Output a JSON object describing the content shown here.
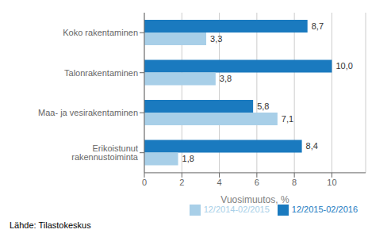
{
  "chart_data": {
    "type": "bar",
    "orientation": "horizontal",
    "categories": [
      "Erikoistunut rakennustoiminta",
      "Maa- ja vesirakentaminen",
      "Talonrakentaminen",
      "Koko rakentaminen"
    ],
    "series": [
      {
        "name": "12/2015-02/2016",
        "color": "#1a7abf",
        "values": [
          8.4,
          5.8,
          10.0,
          8.7
        ],
        "value_labels": [
          "8,4",
          "5,8",
          "10,0",
          "8,7"
        ]
      },
      {
        "name": "12/2014-02/2015",
        "color": "#a8cfe8",
        "values": [
          1.8,
          7.1,
          3.8,
          3.3
        ],
        "value_labels": [
          "1,8",
          "7,1",
          "3,8",
          "3,3"
        ]
      }
    ],
    "xlabel": "Vuosimuutos, %",
    "xlim": [
      0,
      11.8
    ],
    "xticks": [
      0,
      2,
      4,
      6,
      8,
      10
    ],
    "grid": true,
    "legend": "lower right",
    "data_labels": true,
    "annotations": [
      "Lähde: Tilastokeskus"
    ]
  }
}
